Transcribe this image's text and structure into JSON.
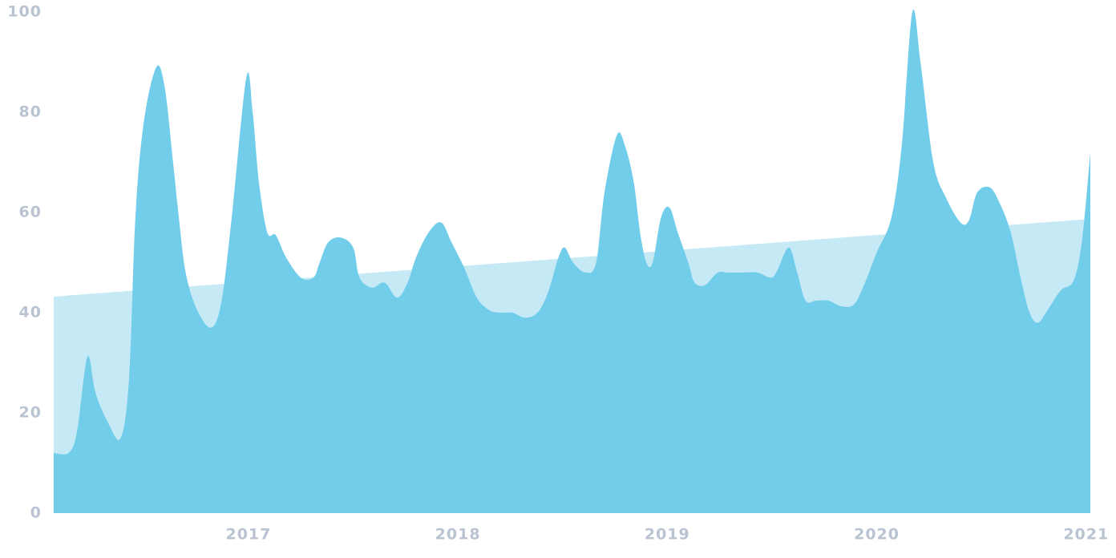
{
  "chart_data": {
    "type": "area",
    "xlim": [
      2016.07,
      2021.02
    ],
    "xticks": [
      2017,
      2018,
      2019,
      2020,
      2021
    ],
    "ylim": [
      0,
      100
    ],
    "yticks": [
      0,
      20,
      40,
      60,
      80,
      100
    ],
    "grid": false,
    "series": [
      {
        "color": "#c6e9f6",
        "x": [
          2016.07,
          2021.02
        ],
        "values": [
          43.2,
          58.7
        ]
      },
      {
        "color": "#72cdea",
        "x": [
          2016.07,
          2016.14,
          2016.18,
          2016.22,
          2016.24,
          2016.27,
          2016.33,
          2016.39,
          2016.43,
          2016.46,
          2016.5,
          2016.56,
          2016.6,
          2016.64,
          2016.67,
          2016.7,
          2016.75,
          2016.82,
          2016.87,
          2016.92,
          2016.99,
          2017.02,
          2017.05,
          2017.09,
          2017.13,
          2017.18,
          2017.25,
          2017.31,
          2017.34,
          2017.38,
          2017.44,
          2017.5,
          2017.53,
          2017.59,
          2017.65,
          2017.71,
          2017.76,
          2017.8,
          2017.86,
          2017.92,
          2017.97,
          2018.03,
          2018.09,
          2018.15,
          2018.2,
          2018.26,
          2018.32,
          2018.38,
          2018.43,
          2018.48,
          2018.51,
          2018.55,
          2018.61,
          2018.66,
          2018.7,
          2018.76,
          2018.8,
          2018.84,
          2018.87,
          2018.9,
          2018.93,
          2018.97,
          2019.01,
          2019.05,
          2019.1,
          2019.13,
          2019.18,
          2019.24,
          2019.29,
          2019.35,
          2019.43,
          2019.49,
          2019.52,
          2019.58,
          2019.62,
          2019.66,
          2019.71,
          2019.77,
          2019.83,
          2019.89,
          2019.94,
          2020.0,
          2020.07,
          2020.12,
          2020.17,
          2020.21,
          2020.27,
          2020.33,
          2020.4,
          2020.44,
          2020.48,
          2020.54,
          2020.59,
          2020.64,
          2020.69,
          2020.73,
          2020.77,
          2020.82,
          2020.88,
          2020.94,
          2020.98,
          2021.02
        ],
        "values": [
          12,
          12,
          16,
          29,
          31,
          24,
          18,
          15,
          27,
          59,
          78,
          89,
          85,
          70,
          58,
          48,
          41,
          37,
          42,
          59,
          87,
          80,
          66,
          56,
          55.5,
          51,
          47,
          47,
          50,
          54,
          55,
          53,
          47,
          45,
          46,
          43,
          46,
          51,
          56,
          58,
          54,
          49,
          43,
          40.5,
          40,
          40,
          39,
          40,
          44,
          51,
          53,
          50,
          48,
          50,
          64,
          75.5,
          73,
          66,
          56,
          50,
          50,
          59,
          61,
          56,
          50,
          46,
          45.5,
          48,
          48,
          48,
          48,
          47,
          48,
          53,
          48,
          42.4,
          42.4,
          42.4,
          41.3,
          41.6,
          45.6,
          52,
          59,
          73.6,
          100,
          89.6,
          70,
          63,
          58,
          58.4,
          64,
          65,
          61.6,
          56,
          46.4,
          40,
          38,
          40.8,
          44.5,
          46.4,
          54.4,
          72
        ]
      }
    ]
  }
}
